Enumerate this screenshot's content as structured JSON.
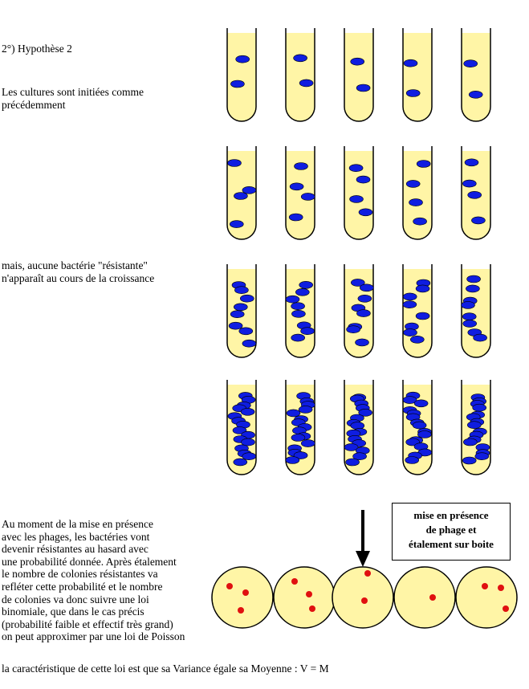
{
  "heading": "2°) Hypothèse 2",
  "intro_lines": [
    "Les cultures sont initiées comme",
    "précédemment"
  ],
  "no_resistance_lines": [
    "mais, aucune bactérie \"résistante\"",
    "n'apparaît au cours de la croissance"
  ],
  "explanation_lines": [
    "Au moment de la mise en présence",
    "avec les phages, les bactéries vont",
    "devenir résistantes au hasard avec",
    "une probabilité donnée. Après étalement",
    "le nombre de colonies résistantes va",
    "refléter cette probabilité et le nombre",
    "de colonies va donc suivre une loi",
    "binomiale, que dans le cas précis",
    "(probabilité faible et effectif très grand)",
    "on peut approximer par une loi de Poisson"
  ],
  "final_line": "la caractéristique de cette loi est que sa Variance égale sa Moyenne : V = M",
  "box_label_lines": [
    "mise en présence",
    "de phage et",
    "étalement sur boite"
  ],
  "colors": {
    "medium": "#fff5a6",
    "bacteria": "#0f1de0",
    "colony": "#e01010",
    "outline": "#000000"
  },
  "tube_rows": [
    {
      "stage": 1,
      "bacteria_per_tube": [
        2,
        2,
        2,
        2,
        2
      ]
    },
    {
      "stage": 2,
      "bacteria_per_tube": [
        4,
        4,
        4,
        4,
        4
      ]
    },
    {
      "stage": 3,
      "bacteria_per_tube": [
        8,
        8,
        8,
        8,
        8
      ]
    },
    {
      "stage": 4,
      "bacteria_per_tube": [
        16,
        16,
        16,
        16,
        16
      ]
    }
  ],
  "plates_colonies": [
    3,
    3,
    2,
    1,
    3
  ]
}
